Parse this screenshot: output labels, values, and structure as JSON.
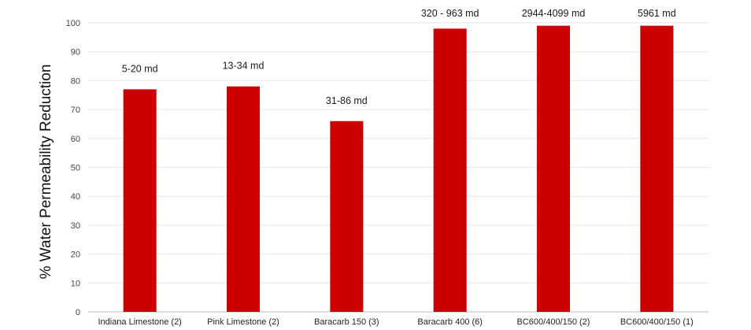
{
  "chart_data": {
    "type": "bar",
    "title": "",
    "xlabel": "",
    "ylabel": "% Water Permeability Reduction",
    "ylim": [
      0,
      100
    ],
    "yticks": [
      0,
      10,
      20,
      30,
      40,
      50,
      60,
      70,
      80,
      90,
      100
    ],
    "grid": true,
    "legend": "none",
    "bar_color": "#cc0000",
    "categories": [
      "Indiana Limestone (2)",
      "Pink Limestone (2)",
      "Baracarb 150 (3)",
      "Baracarb 400 (6)",
      "BC600/400/150 (2)",
      "BC600/400/150 (1)"
    ],
    "values": [
      77,
      78,
      66,
      98,
      99,
      99
    ],
    "annotations": [
      "5-20 md",
      "13-34 md",
      "31-86 md",
      "320 - 963 md",
      "2944-4099 md",
      "5961 md"
    ]
  }
}
